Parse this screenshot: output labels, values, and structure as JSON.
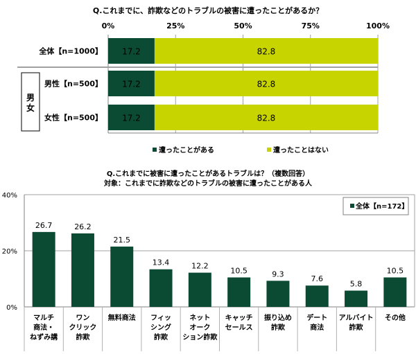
{
  "colors": {
    "experienced": "#0b4a33",
    "not_experienced": "#c8d400",
    "grid": "#a0a0a0"
  },
  "chart_data": [
    {
      "type": "bar",
      "orientation": "horizontal-stacked-100",
      "title": "Q.これまでに、詐欺などのトラブルの被害に遭ったことがあるか？",
      "x_ticks": [
        "0%",
        "25%",
        "50%",
        "75%",
        "100%"
      ],
      "xlim": [
        0,
        100
      ],
      "grid": true,
      "group_label": "男女",
      "categories": [
        "全体【n=1000】",
        "男性【n=500】",
        "女性【n=500】"
      ],
      "series": [
        {
          "name": "遭ったことがある",
          "values": [
            17.2,
            17.2,
            17.2
          ]
        },
        {
          "name": "遭ったことはない",
          "values": [
            82.8,
            82.8,
            82.8
          ]
        }
      ],
      "legend_position": "bottom"
    },
    {
      "type": "bar",
      "title": "Q.これまでに被害に遭ったことがあるトラブルは？（複数回答）",
      "subtitle": "対象：これまでに詐欺などのトラブルの被害に遭ったことがある人",
      "y_ticks": [
        "0%",
        "20%",
        "40%"
      ],
      "ylim": [
        0,
        40
      ],
      "grid": true,
      "categories": [
        [
          "マルチ",
          "商法・",
          "ねずみ講"
        ],
        [
          "ワン",
          "クリック",
          "詐欺"
        ],
        [
          "無料商法"
        ],
        [
          "フィッ",
          "シング",
          "詐欺"
        ],
        [
          "ネット",
          "オーク",
          "ション詐欺"
        ],
        [
          "キャッチ",
          "セールス"
        ],
        [
          "振り込め",
          "詐欺"
        ],
        [
          "デート",
          "商法"
        ],
        [
          "アルバイト",
          "詐欺"
        ],
        [
          "その他"
        ]
      ],
      "series": [
        {
          "name": "全体【n=172】",
          "values": [
            26.7,
            26.2,
            21.5,
            13.4,
            12.2,
            10.5,
            9.3,
            7.6,
            5.8,
            10.5
          ]
        }
      ],
      "legend_position": "top-right"
    }
  ]
}
